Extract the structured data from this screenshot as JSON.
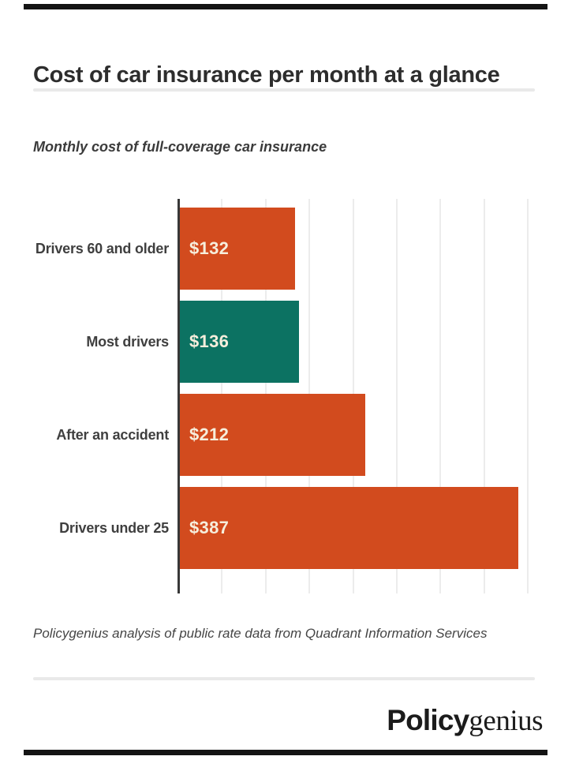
{
  "page": {
    "title": "Cost of car insurance per month at a glance"
  },
  "chart_data": {
    "type": "bar",
    "orientation": "horizontal",
    "title": "Monthly cost of full-coverage car insurance",
    "categories": [
      "Drivers 60 and older",
      "Most drivers",
      "After an accident",
      "Drivers under 25"
    ],
    "values": [
      132,
      136,
      212,
      387
    ],
    "value_labels": [
      "$132",
      "$136",
      "$212",
      "$387"
    ],
    "bar_colors": [
      "#d24b1e",
      "#0c7262",
      "#d24b1e",
      "#d24b1e"
    ],
    "xlim": [
      0,
      400
    ],
    "gridline_step": 50,
    "grid": true,
    "axis_ticks_labeled": false,
    "legend": "none"
  },
  "footnote": {
    "text": "Policygenius analysis of public rate data from Quadrant Information Services"
  },
  "logo": {
    "bold_part": "Policy",
    "serif_part": "genius"
  },
  "colors": {
    "accent_orange": "#d24b1e",
    "accent_teal": "#0c7262",
    "bar_value_text": "#f6eedc",
    "axis_line": "#383838",
    "gridline": "#ececec",
    "divider": "#e9e9e9",
    "edge_bar": "#141414",
    "title_text": "#2d2d2d",
    "label_text": "#3f3f3f"
  }
}
